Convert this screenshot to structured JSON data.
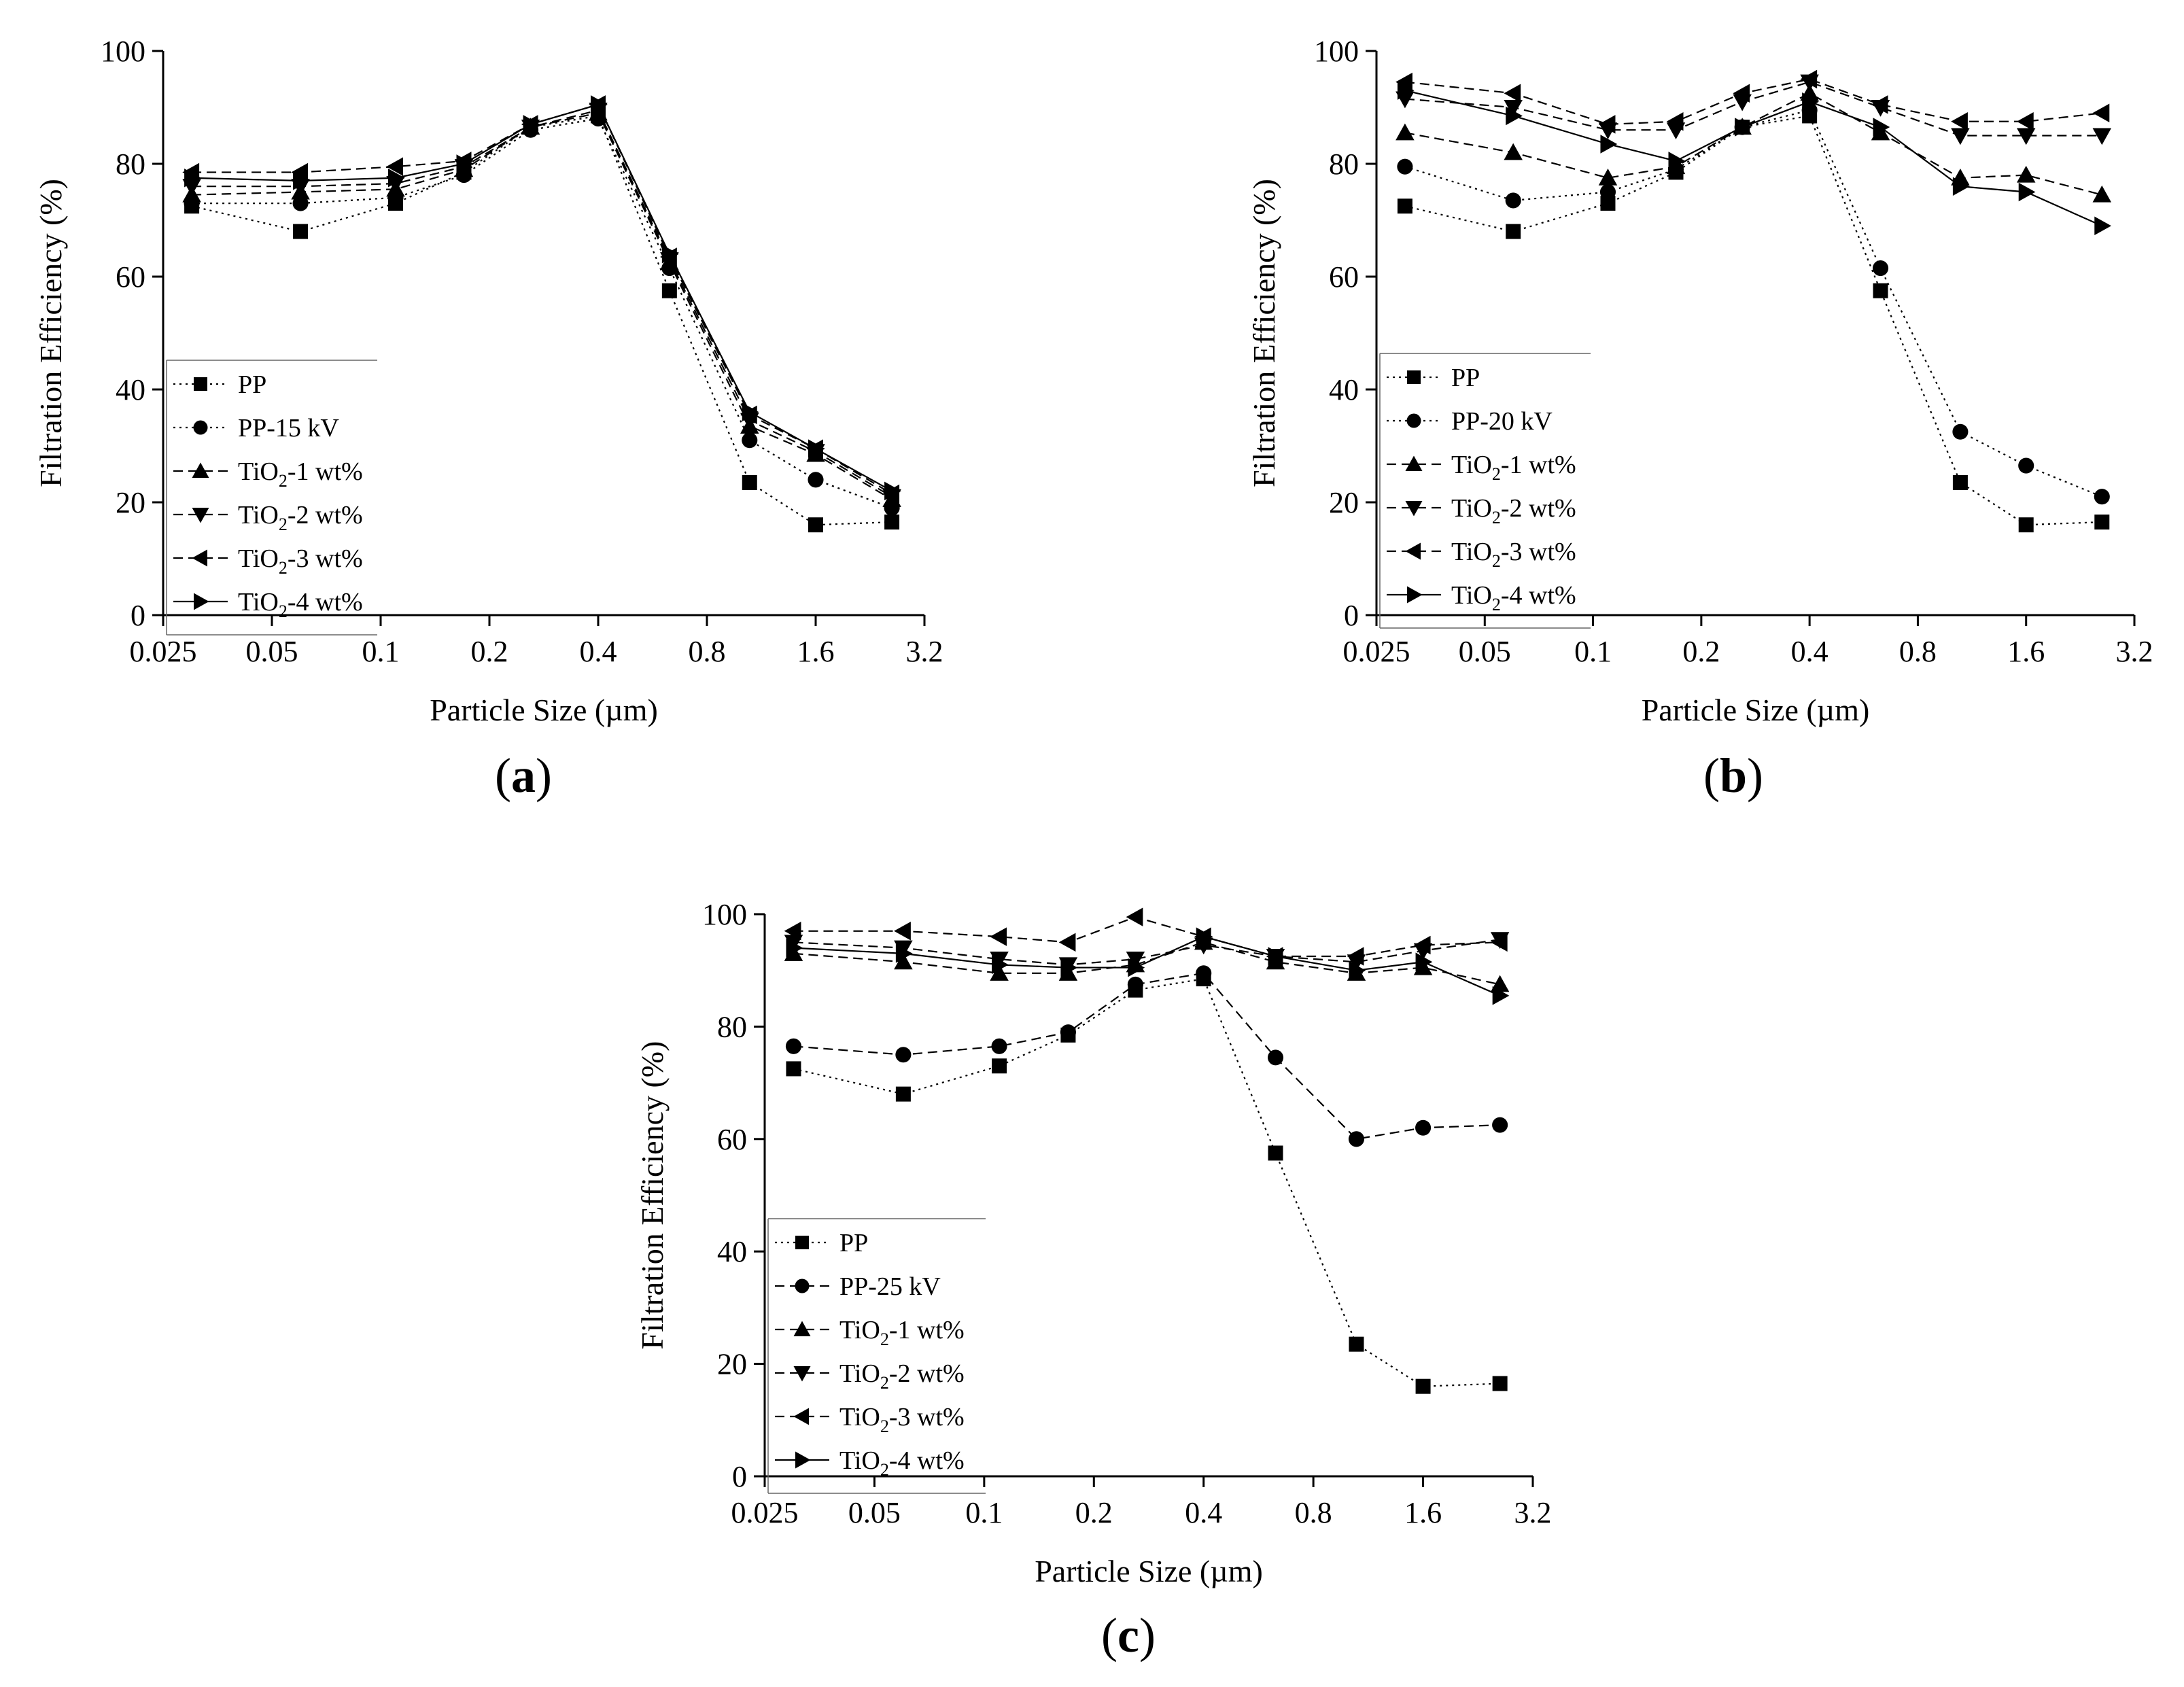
{
  "chart_data": [
    {
      "type": "line",
      "panel_label": "a",
      "xlabel": "Particle Size (µm)",
      "ylabel": "Filtration Efficiency (%)",
      "xscale": "log2",
      "xlim": [
        0.025,
        3.2
      ],
      "ylim": [
        0,
        100
      ],
      "xticks": [
        0.025,
        0.05,
        0.1,
        0.2,
        0.4,
        0.8,
        1.6,
        3.2
      ],
      "xtick_labels": [
        "0.025",
        "0.05",
        "0.1",
        "0.2",
        "0.4",
        "0.8",
        "1.6",
        "3.2"
      ],
      "yticks": [
        0,
        20,
        40,
        60,
        80,
        100
      ],
      "ytick_labels": [
        "0",
        "20",
        "40",
        "60",
        "80",
        "100"
      ],
      "legend_position": "lower-left",
      "x": [
        0.03,
        0.06,
        0.11,
        0.17,
        0.26,
        0.4,
        0.63,
        1.05,
        1.6,
        2.6
      ],
      "series": [
        {
          "name": "PP",
          "name_main": "PP",
          "name_sub": "",
          "name_rest": "",
          "marker": "square",
          "dash": "dot",
          "values": [
            72.5,
            68,
            73,
            78.5,
            86.5,
            88.5,
            57.5,
            23.5,
            16,
            16.5
          ]
        },
        {
          "name": "PP-15 kV",
          "name_main": "PP-15 kV",
          "name_sub": "",
          "name_rest": "",
          "marker": "circle",
          "dash": "dot",
          "values": [
            73,
            73,
            74,
            78,
            86,
            88,
            61.5,
            31,
            24,
            19
          ]
        },
        {
          "name": "TiO2-1 wt%",
          "name_main": "TiO",
          "name_sub": "2",
          "name_rest": "-1 wt%",
          "marker": "triangle-up",
          "dash": "dash",
          "values": [
            74.5,
            75,
            75.5,
            79,
            86.5,
            89,
            62.5,
            33.5,
            28.5,
            20.5
          ]
        },
        {
          "name": "TiO2-2 wt%",
          "name_main": "TiO",
          "name_sub": "2",
          "name_rest": "-2 wt%",
          "marker": "triangle-down",
          "dash": "dash",
          "values": [
            76,
            76,
            76.5,
            79.5,
            86.5,
            89.5,
            63,
            34.5,
            29,
            21
          ]
        },
        {
          "name": "TiO2-3 wt%",
          "name_main": "TiO",
          "name_sub": "2",
          "name_rest": "-3 wt%",
          "marker": "triangle-left",
          "dash": "dash",
          "values": [
            78.5,
            78.5,
            79.5,
            80.5,
            87,
            90.5,
            63.5,
            35.5,
            29.5,
            21.5
          ]
        },
        {
          "name": "TiO2-4 wt%",
          "name_main": "TiO",
          "name_sub": "2",
          "name_rest": "-4 wt%",
          "marker": "triangle-right",
          "dash": "solid",
          "values": [
            77.5,
            77,
            77.5,
            80,
            87,
            90.5,
            64,
            36,
            29.5,
            22
          ]
        }
      ]
    },
    {
      "type": "line",
      "panel_label": "b",
      "xlabel": "Particle Size (µm)",
      "ylabel": "Filtration Efficiency (%)",
      "xscale": "log2",
      "xlim": [
        0.025,
        3.2
      ],
      "ylim": [
        0,
        100
      ],
      "xticks": [
        0.025,
        0.05,
        0.1,
        0.2,
        0.4,
        0.8,
        1.6,
        3.2
      ],
      "xtick_labels": [
        "0.025",
        "0.05",
        "0.1",
        "0.2",
        "0.4",
        "0.8",
        "1.6",
        "3.2"
      ],
      "yticks": [
        0,
        20,
        40,
        60,
        80,
        100
      ],
      "ytick_labels": [
        "0",
        "20",
        "40",
        "60",
        "80",
        "100"
      ],
      "legend_position": "lower-left",
      "x": [
        0.03,
        0.06,
        0.11,
        0.17,
        0.26,
        0.4,
        0.63,
        1.05,
        1.6,
        2.6
      ],
      "series": [
        {
          "name": "PP",
          "name_main": "PP",
          "name_sub": "",
          "name_rest": "",
          "marker": "square",
          "dash": "dot",
          "values": [
            72.5,
            68,
            73,
            78.5,
            86.5,
            88.5,
            57.5,
            23.5,
            16,
            16.5
          ]
        },
        {
          "name": "PP-20 kV",
          "name_main": "PP-20 kV",
          "name_sub": "",
          "name_rest": "",
          "marker": "circle",
          "dash": "dot",
          "values": [
            79.5,
            73.5,
            75,
            79,
            86.5,
            89.5,
            61.5,
            32.5,
            26.5,
            21
          ]
        },
        {
          "name": "TiO2-1 wt%",
          "name_main": "TiO",
          "name_sub": "2",
          "name_rest": "-1 wt%",
          "marker": "triangle-up",
          "dash": "dash",
          "values": [
            85.5,
            82,
            77.5,
            79.5,
            86.5,
            92.5,
            85.5,
            77.5,
            78,
            74.5
          ]
        },
        {
          "name": "TiO2-2 wt%",
          "name_main": "TiO",
          "name_sub": "2",
          "name_rest": "-2 wt%",
          "marker": "triangle-down",
          "dash": "dash",
          "values": [
            91.5,
            90,
            86,
            86,
            91,
            94.5,
            90,
            85,
            85,
            85
          ]
        },
        {
          "name": "TiO2-3 wt%",
          "name_main": "TiO",
          "name_sub": "2",
          "name_rest": "-3 wt%",
          "marker": "triangle-left",
          "dash": "dash",
          "values": [
            94.5,
            92.5,
            87,
            87.5,
            92.5,
            95,
            90.5,
            87.5,
            87.5,
            89
          ]
        },
        {
          "name": "TiO2-4 wt%",
          "name_main": "TiO",
          "name_sub": "2",
          "name_rest": "-4 wt%",
          "marker": "triangle-right",
          "dash": "solid",
          "values": [
            93,
            88.5,
            83.5,
            80.5,
            86.5,
            91,
            86.5,
            76,
            75,
            69
          ]
        }
      ]
    },
    {
      "type": "line",
      "panel_label": "c",
      "xlabel": "Particle Size (µm)",
      "ylabel": "Filtration Efficiency (%)",
      "xscale": "log2",
      "xlim": [
        0.025,
        3.2
      ],
      "ylim": [
        0,
        100
      ],
      "xticks": [
        0.025,
        0.05,
        0.1,
        0.2,
        0.4,
        0.8,
        1.6,
        3.2
      ],
      "xtick_labels": [
        "0.025",
        "0.05",
        "0.1",
        "0.2",
        "0.4",
        "0.8",
        "1.6",
        "3.2"
      ],
      "yticks": [
        0,
        20,
        40,
        60,
        80,
        100
      ],
      "ytick_labels": [
        "0",
        "20",
        "40",
        "60",
        "80",
        "100"
      ],
      "legend_position": "lower-left",
      "x": [
        0.03,
        0.06,
        0.11,
        0.17,
        0.26,
        0.4,
        0.63,
        1.05,
        1.6,
        2.6
      ],
      "series": [
        {
          "name": "PP",
          "name_main": "PP",
          "name_sub": "",
          "name_rest": "",
          "marker": "square",
          "dash": "dot",
          "values": [
            72.5,
            68,
            73,
            78.5,
            86.5,
            88.5,
            57.5,
            23.5,
            16,
            16.5
          ]
        },
        {
          "name": "PP-25 kV",
          "name_main": "PP-25 kV",
          "name_sub": "",
          "name_rest": "",
          "marker": "circle",
          "dash": "dash",
          "values": [
            76.5,
            75,
            76.5,
            79,
            87.5,
            89.5,
            74.5,
            60,
            62,
            62.5
          ]
        },
        {
          "name": "TiO2-1 wt%",
          "name_main": "TiO",
          "name_sub": "2",
          "name_rest": "-1 wt%",
          "marker": "triangle-up",
          "dash": "dash",
          "values": [
            93,
            91.5,
            89.5,
            89.5,
            91,
            95,
            91.5,
            89.5,
            90.5,
            87.5
          ]
        },
        {
          "name": "TiO2-2 wt%",
          "name_main": "TiO",
          "name_sub": "2",
          "name_rest": "-2 wt%",
          "marker": "triangle-down",
          "dash": "dash",
          "values": [
            95,
            94,
            92,
            91,
            92,
            94.5,
            92.5,
            91.5,
            93.5,
            95.5
          ]
        },
        {
          "name": "TiO2-3 wt%",
          "name_main": "TiO",
          "name_sub": "2",
          "name_rest": "-3 wt%",
          "marker": "triangle-left",
          "dash": "dash",
          "values": [
            97,
            97,
            96,
            95,
            99.5,
            96,
            92.5,
            92.5,
            94.5,
            95
          ]
        },
        {
          "name": "TiO2-4 wt%",
          "name_main": "TiO",
          "name_sub": "2",
          "name_rest": "-4 wt%",
          "marker": "triangle-right",
          "dash": "solid",
          "values": [
            94,
            93,
            91,
            90.5,
            90.5,
            96,
            92.5,
            90,
            91.5,
            85.5
          ]
        }
      ]
    }
  ]
}
